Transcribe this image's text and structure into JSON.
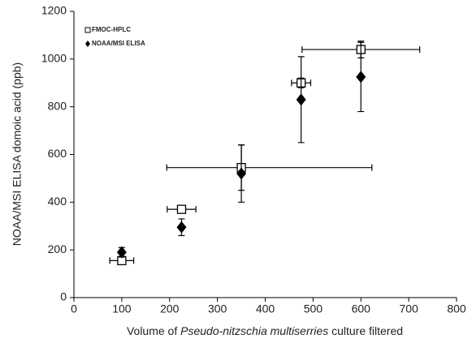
{
  "chart_data": {
    "type": "scatter",
    "xlabel": [
      "Volume of ",
      "Pseudo-nitzschia multiserries",
      " culture filtered"
    ],
    "ylabel": "NOAA/MSI ELISA domoic acid (ppb)",
    "xlim": [
      0,
      800
    ],
    "xticks": [
      0,
      100,
      200,
      300,
      400,
      500,
      600,
      700,
      800
    ],
    "ylim": [
      0,
      1200
    ],
    "yticks": [
      0,
      200,
      400,
      600,
      800,
      1000,
      1200
    ],
    "legend": "upper left",
    "series": [
      {
        "name": "FMOC-HPLC",
        "marker": "square",
        "color": "#000000",
        "x": [
          100,
          225,
          350,
          475,
          600
        ],
        "values": [
          155,
          370,
          545,
          900,
          1040
        ],
        "xerr": [
          [
            25,
            25
          ],
          [
            30,
            30
          ],
          [
            156,
            273
          ],
          [
            20,
            20
          ],
          [
            123,
            123
          ]
        ],
        "yerr": [
          10,
          10,
          95,
          20,
          35
        ]
      },
      {
        "name": "NOAA/MSI ELISA",
        "marker": "diamond",
        "color": "#000000",
        "x": [
          100,
          225,
          350,
          475,
          600
        ],
        "values": [
          190,
          295,
          520,
          830,
          925
        ],
        "yerr": [
          20,
          35,
          120,
          180,
          145
        ]
      }
    ]
  }
}
